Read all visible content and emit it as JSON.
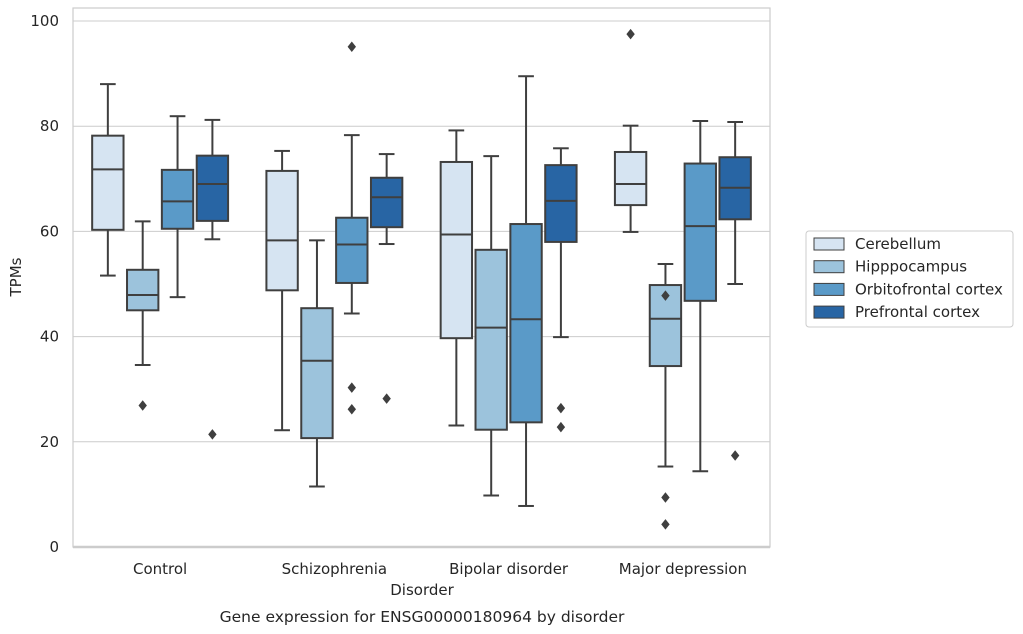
{
  "chart_data": {
    "type": "box",
    "title": "",
    "caption": "Gene expression for ENSG00000180964 by disorder",
    "xlabel": "Disorder",
    "ylabel": "TPMs",
    "ylim": [
      0,
      100
    ],
    "yticks": [
      0,
      20,
      40,
      60,
      80,
      100
    ],
    "grid": "horizontal",
    "legend_position": "right",
    "categories": [
      "Control",
      "Schizophrenia",
      "Bipolar disorder",
      "Major depression"
    ],
    "series": [
      {
        "name": "Cerebellum",
        "color": "#d6e4f2",
        "boxes": [
          {
            "whislo": 51.6,
            "q1": 60.3,
            "med": 71.8,
            "q3": 78.2,
            "whishi": 88.0,
            "fliers": []
          },
          {
            "whislo": 22.2,
            "q1": 48.8,
            "med": 58.3,
            "q3": 71.5,
            "whishi": 75.3,
            "fliers": []
          },
          {
            "whislo": 23.1,
            "q1": 39.7,
            "med": 59.4,
            "q3": 73.2,
            "whishi": 79.2,
            "fliers": []
          },
          {
            "whislo": 59.9,
            "q1": 65.0,
            "med": 69.0,
            "q3": 75.1,
            "whishi": 80.1,
            "fliers": [
              97.5
            ]
          }
        ]
      },
      {
        "name": "Hipppocampus",
        "color": "#9cc3dc",
        "boxes": [
          {
            "whislo": 34.6,
            "q1": 45.0,
            "med": 47.9,
            "q3": 52.7,
            "whishi": 61.9,
            "fliers": [
              26.9
            ]
          },
          {
            "whislo": 11.5,
            "q1": 20.7,
            "med": 35.4,
            "q3": 45.4,
            "whishi": 58.3,
            "fliers": []
          },
          {
            "whislo": 9.8,
            "q1": 22.3,
            "med": 41.7,
            "q3": 56.5,
            "whishi": 74.3,
            "fliers": []
          },
          {
            "whislo": 15.3,
            "q1": 34.4,
            "med": 43.4,
            "q3": 49.8,
            "whishi": 53.8,
            "fliers": [
              47.8,
              9.4,
              4.3
            ]
          }
        ]
      },
      {
        "name": "Orbitofrontal cortex",
        "color": "#5a9ac8",
        "boxes": [
          {
            "whislo": 47.5,
            "q1": 60.5,
            "med": 65.7,
            "q3": 71.7,
            "whishi": 81.9,
            "fliers": []
          },
          {
            "whislo": 44.4,
            "q1": 50.2,
            "med": 57.5,
            "q3": 62.6,
            "whishi": 78.3,
            "fliers": [
              95.1,
              30.3,
              26.2
            ]
          },
          {
            "whislo": 7.8,
            "q1": 23.7,
            "med": 43.3,
            "q3": 61.4,
            "whishi": 89.5,
            "fliers": []
          },
          {
            "whislo": 14.4,
            "q1": 46.8,
            "med": 61.0,
            "q3": 72.9,
            "whishi": 81.0,
            "fliers": []
          }
        ]
      },
      {
        "name": "Prefrontal cortex",
        "color": "#2865a4",
        "boxes": [
          {
            "whislo": 58.5,
            "q1": 62.0,
            "med": 69.0,
            "q3": 74.4,
            "whishi": 81.2,
            "fliers": [
              21.4
            ]
          },
          {
            "whislo": 57.6,
            "q1": 60.8,
            "med": 66.5,
            "q3": 70.2,
            "whishi": 74.7,
            "fliers": [
              28.2
            ]
          },
          {
            "whislo": 39.9,
            "q1": 58.0,
            "med": 65.8,
            "q3": 72.6,
            "whishi": 75.8,
            "fliers": [
              26.4,
              22.8
            ]
          },
          {
            "whislo": 50.0,
            "q1": 62.3,
            "med": 68.3,
            "q3": 74.1,
            "whishi": 80.8,
            "fliers": [
              17.4
            ]
          }
        ]
      }
    ]
  }
}
